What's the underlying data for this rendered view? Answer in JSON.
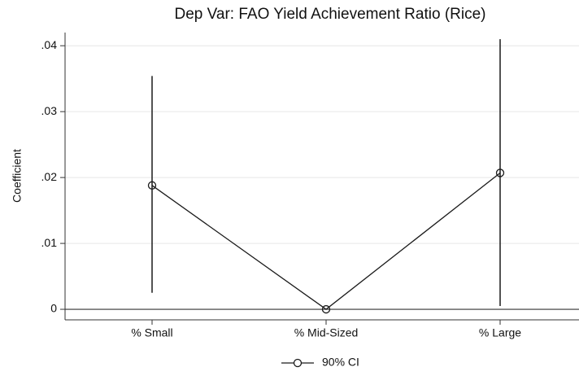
{
  "chart_data": {
    "type": "line",
    "title": "Dep Var: FAO Yield Achievement Ratio (Rice)",
    "y_label": "Coefficient",
    "categories": [
      "% Small",
      "% Mid-Sized",
      "% Large"
    ],
    "series": [
      {
        "name": "90% CI",
        "color": "#1a1a1a",
        "values": [
          0.0188,
          0,
          0.0207
        ],
        "ci_low": [
          0.0025,
          0,
          0.0005
        ],
        "ci_high": [
          0.0354,
          0,
          0.041
        ]
      }
    ],
    "ylim": [
      -0.0016,
      0.042
    ],
    "yticks": [
      0,
      {
        "value": 0.01,
        "label": ".01"
      },
      {
        "value": 0.02,
        "label": ".02"
      },
      {
        "value": 0.03,
        "label": ".03"
      },
      {
        "value": 0.04,
        "label": ".04"
      }
    ],
    "reference_line": 0,
    "grid": true,
    "legend": "bottom"
  }
}
